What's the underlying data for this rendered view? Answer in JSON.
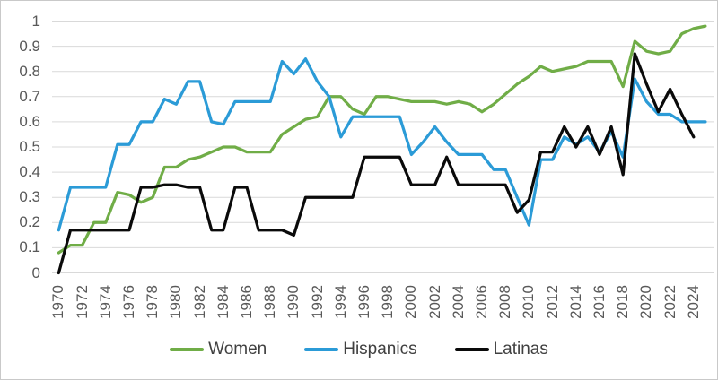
{
  "chart_data": {
    "type": "line",
    "title": "",
    "xlabel": "",
    "ylabel": "",
    "x_start_year": 1970,
    "x_end_year": 2025,
    "x_tick_labels": [
      "1970",
      "1972",
      "1974",
      "1976",
      "1978",
      "1980",
      "1982",
      "1984",
      "1986",
      "1988",
      "1990",
      "1992",
      "1994",
      "1996",
      "1998",
      "2000",
      "2002",
      "2004",
      "2006",
      "2008",
      "2010",
      "2012",
      "2014",
      "2016",
      "2018",
      "2020",
      "2022",
      "2024"
    ],
    "y_ticks": [
      "0",
      "0.1",
      "0.2",
      "0.3",
      "0.4",
      "0.5",
      "0.6",
      "0.7",
      "0.8",
      "0.9",
      "1"
    ],
    "ylim": [
      0,
      1
    ],
    "grid": "horizontal",
    "gridline_color": "#d9d9d9",
    "axis_label_color": "#595959",
    "legend_position": "bottom",
    "series": [
      {
        "name": "Women",
        "color": "#70ad47",
        "values": [
          0.08,
          0.11,
          0.11,
          0.2,
          0.2,
          0.32,
          0.31,
          0.28,
          0.3,
          0.42,
          0.42,
          0.45,
          0.46,
          0.48,
          0.5,
          0.5,
          0.48,
          0.48,
          0.48,
          0.55,
          0.58,
          0.61,
          0.62,
          0.7,
          0.7,
          0.65,
          0.63,
          0.7,
          0.7,
          0.69,
          0.68,
          0.68,
          0.68,
          0.67,
          0.68,
          0.67,
          0.64,
          0.67,
          0.71,
          0.75,
          0.78,
          0.82,
          0.8,
          0.81,
          0.82,
          0.84,
          0.84,
          0.84,
          0.74,
          0.92,
          0.88,
          0.87,
          0.88,
          0.95,
          0.97,
          0.98
        ]
      },
      {
        "name": "Hispanics",
        "color": "#2b9bd7",
        "values": [
          0.17,
          0.34,
          0.34,
          0.34,
          0.34,
          0.51,
          0.51,
          0.6,
          0.6,
          0.69,
          0.67,
          0.76,
          0.76,
          0.6,
          0.59,
          0.68,
          0.68,
          0.68,
          0.68,
          0.84,
          0.79,
          0.85,
          0.76,
          0.7,
          0.54,
          0.62,
          0.62,
          0.62,
          0.62,
          0.62,
          0.47,
          0.52,
          0.58,
          0.52,
          0.47,
          0.47,
          0.47,
          0.41,
          0.41,
          0.3,
          0.19,
          0.45,
          0.45,
          0.54,
          0.51,
          0.54,
          0.48,
          0.56,
          0.46,
          0.77,
          0.68,
          0.63,
          0.63,
          0.6,
          0.6,
          0.6
        ]
      },
      {
        "name": "Latinas",
        "color": "#0a0a0a",
        "values": [
          0.0,
          0.17,
          0.17,
          0.17,
          0.17,
          0.17,
          0.17,
          0.34,
          0.34,
          0.35,
          0.35,
          0.34,
          0.34,
          0.17,
          0.17,
          0.34,
          0.34,
          0.17,
          0.17,
          0.17,
          0.15,
          0.3,
          0.3,
          0.3,
          0.3,
          0.3,
          0.46,
          0.46,
          0.46,
          0.46,
          0.35,
          0.35,
          0.35,
          0.46,
          0.35,
          0.35,
          0.35,
          0.35,
          0.35,
          0.24,
          0.29,
          0.48,
          0.48,
          0.58,
          0.5,
          0.58,
          0.47,
          0.58,
          0.39,
          0.87,
          0.75,
          0.64,
          0.73,
          0.63,
          0.54,
          null
        ]
      }
    ]
  }
}
